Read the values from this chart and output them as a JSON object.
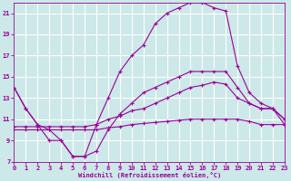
{
  "bg_color": "#cce8e8",
  "line_color": "#990099",
  "grid_color": "#ffffff",
  "xlabel": "Windchill (Refroidissement éolien,°C)",
  "xlim": [
    0,
    23
  ],
  "ylim": [
    7,
    22
  ],
  "yticks": [
    7,
    9,
    11,
    13,
    15,
    17,
    19,
    21
  ],
  "xticks": [
    0,
    1,
    2,
    3,
    4,
    5,
    6,
    7,
    8,
    9,
    10,
    11,
    12,
    13,
    14,
    15,
    16,
    17,
    18,
    19,
    20,
    21,
    22,
    23
  ],
  "lines": [
    {
      "x": [
        0,
        1,
        2,
        3,
        4,
        5,
        6,
        7,
        8,
        9,
        10,
        11,
        12,
        13,
        14,
        15,
        16,
        17,
        18,
        19,
        20,
        21,
        22,
        23
      ],
      "y": [
        10.0,
        10.0,
        10.0,
        10.0,
        10.0,
        10.0,
        10.0,
        10.0,
        10.2,
        10.3,
        10.5,
        10.6,
        10.7,
        10.8,
        10.9,
        11.0,
        11.0,
        11.0,
        11.0,
        11.0,
        10.8,
        10.5,
        10.5,
        10.5
      ]
    },
    {
      "x": [
        0,
        1,
        2,
        3,
        4,
        5,
        6,
        7,
        8,
        9,
        10,
        11,
        12,
        13,
        14,
        15,
        16,
        17,
        18,
        19,
        20,
        21,
        22,
        23
      ],
      "y": [
        10.3,
        10.3,
        10.3,
        10.3,
        10.3,
        10.3,
        10.3,
        10.5,
        11.0,
        11.3,
        11.8,
        12.0,
        12.5,
        13.0,
        13.5,
        14.0,
        14.2,
        14.5,
        14.3,
        13.0,
        12.5,
        12.0,
        12.0,
        11.0
      ]
    },
    {
      "x": [
        0,
        1,
        2,
        3,
        4,
        5,
        6,
        7,
        8,
        9,
        10,
        11,
        12,
        13,
        14,
        15,
        16,
        17,
        18,
        19,
        20,
        21,
        22,
        23
      ],
      "y": [
        14.0,
        12.0,
        10.5,
        10.0,
        9.0,
        7.5,
        7.5,
        8.0,
        10.0,
        11.5,
        12.5,
        13.5,
        14.0,
        14.5,
        15.0,
        15.5,
        15.5,
        15.5,
        15.5,
        14.0,
        12.5,
        12.0,
        12.0,
        10.5
      ]
    },
    {
      "x": [
        0,
        1,
        2,
        3,
        4,
        5,
        6,
        7,
        8,
        9,
        10,
        11,
        12,
        13,
        14,
        15,
        16,
        17,
        18,
        19,
        20,
        21,
        22,
        23
      ],
      "y": [
        14.0,
        12.0,
        10.5,
        9.0,
        9.0,
        7.5,
        7.5,
        10.5,
        13.0,
        15.5,
        17.0,
        18.0,
        20.0,
        21.0,
        21.5,
        22.0,
        22.0,
        21.5,
        21.2,
        16.0,
        13.5,
        12.5,
        12.0,
        11.0
      ]
    }
  ]
}
